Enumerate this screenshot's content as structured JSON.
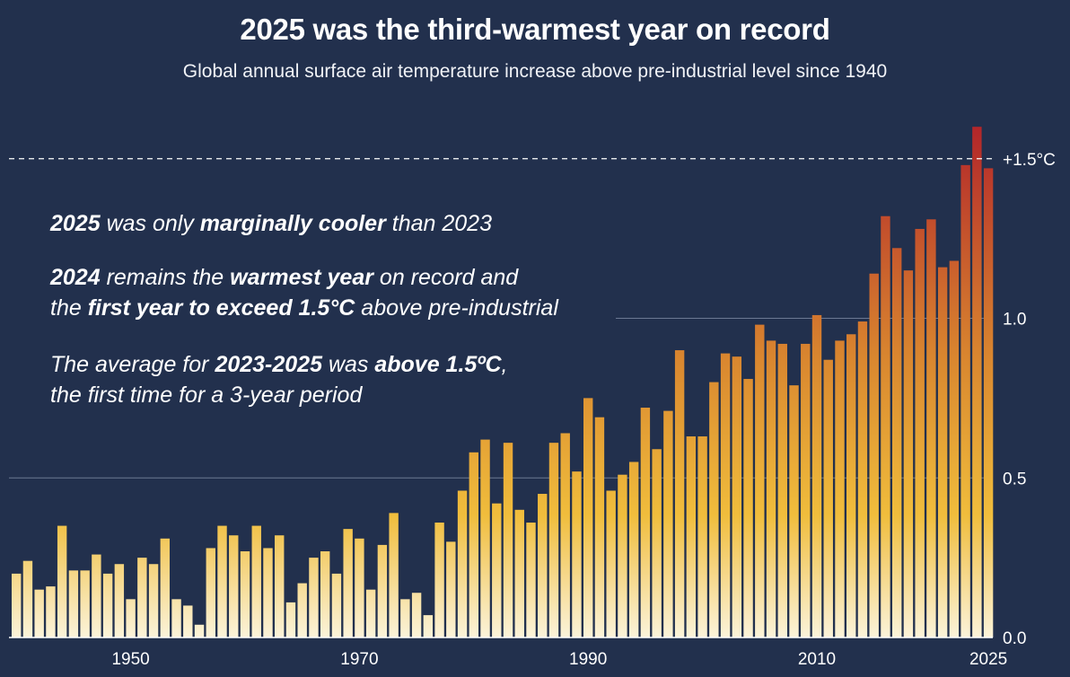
{
  "title": "2025 was the third-warmest year on record",
  "subtitle": "Global annual surface air temperature increase above pre-industrial level since 1940",
  "notes": {
    "n1": {
      "a": "2025",
      "b": " was only ",
      "c": "marginally cooler",
      "d": " than 2023"
    },
    "n2": {
      "a": "2024",
      "b": " remains the ",
      "c": "warmest year",
      "d": " on record and",
      "e": "the ",
      "f": "first year to exceed 1.5°C",
      "g": " above pre-industrial"
    },
    "n3": {
      "a": "The average for ",
      "b": "2023-2025",
      "c": " was ",
      "d": "above 1.5ºC",
      "e": ",",
      "f": "the first time for a 3-year period"
    }
  },
  "colors": {
    "background": "#22304d",
    "bar_low": "#fbf3da",
    "bar_mid": "#f0bd3c",
    "bar_high": "#b3262a",
    "gridline": "#6b7892",
    "axis_text": "#ffffff"
  },
  "chart_data": {
    "type": "bar",
    "title": "2025 was the third-warmest year on record",
    "xlabel": "",
    "ylabel": "",
    "ylim": [
      0,
      1.6
    ],
    "yticks": [
      {
        "value": 0.0,
        "label": "0.0"
      },
      {
        "value": 0.5,
        "label": "0.5"
      },
      {
        "value": 1.0,
        "label": "1.0"
      },
      {
        "value": 1.5,
        "label": "+1.5°C"
      }
    ],
    "xticks": [
      {
        "value": 1950,
        "label": "1950"
      },
      {
        "value": 1970,
        "label": "1970"
      },
      {
        "value": 1990,
        "label": "1990"
      },
      {
        "value": 2010,
        "label": "2010"
      },
      {
        "value": 2025,
        "label": "2025"
      }
    ],
    "reference_line": {
      "value": 1.5,
      "label": "+1.5°C",
      "style": "dashed"
    },
    "years": [
      1940,
      1941,
      1942,
      1943,
      1944,
      1945,
      1946,
      1947,
      1948,
      1949,
      1950,
      1951,
      1952,
      1953,
      1954,
      1955,
      1956,
      1957,
      1958,
      1959,
      1960,
      1961,
      1962,
      1963,
      1964,
      1965,
      1966,
      1967,
      1968,
      1969,
      1970,
      1971,
      1972,
      1973,
      1974,
      1975,
      1976,
      1977,
      1978,
      1979,
      1980,
      1981,
      1982,
      1983,
      1984,
      1985,
      1986,
      1987,
      1988,
      1989,
      1990,
      1991,
      1992,
      1993,
      1994,
      1995,
      1996,
      1997,
      1998,
      1999,
      2000,
      2001,
      2002,
      2003,
      2004,
      2005,
      2006,
      2007,
      2008,
      2009,
      2010,
      2011,
      2012,
      2013,
      2014,
      2015,
      2016,
      2017,
      2018,
      2019,
      2020,
      2021,
      2022,
      2023,
      2024,
      2025
    ],
    "values": [
      0.2,
      0.24,
      0.15,
      0.16,
      0.35,
      0.21,
      0.21,
      0.26,
      0.2,
      0.23,
      0.12,
      0.25,
      0.23,
      0.31,
      0.12,
      0.1,
      0.04,
      0.28,
      0.35,
      0.32,
      0.27,
      0.35,
      0.28,
      0.32,
      0.11,
      0.17,
      0.25,
      0.27,
      0.2,
      0.34,
      0.31,
      0.15,
      0.29,
      0.39,
      0.12,
      0.14,
      0.07,
      0.36,
      0.3,
      0.46,
      0.58,
      0.62,
      0.42,
      0.61,
      0.4,
      0.36,
      0.45,
      0.61,
      0.64,
      0.52,
      0.75,
      0.69,
      0.46,
      0.51,
      0.55,
      0.72,
      0.59,
      0.71,
      0.9,
      0.63,
      0.63,
      0.8,
      0.89,
      0.88,
      0.81,
      0.98,
      0.93,
      0.92,
      0.79,
      0.92,
      1.01,
      0.87,
      0.93,
      0.95,
      0.99,
      1.14,
      1.32,
      1.22,
      1.15,
      1.28,
      1.31,
      1.16,
      1.18,
      1.48,
      1.6,
      1.47
    ]
  }
}
